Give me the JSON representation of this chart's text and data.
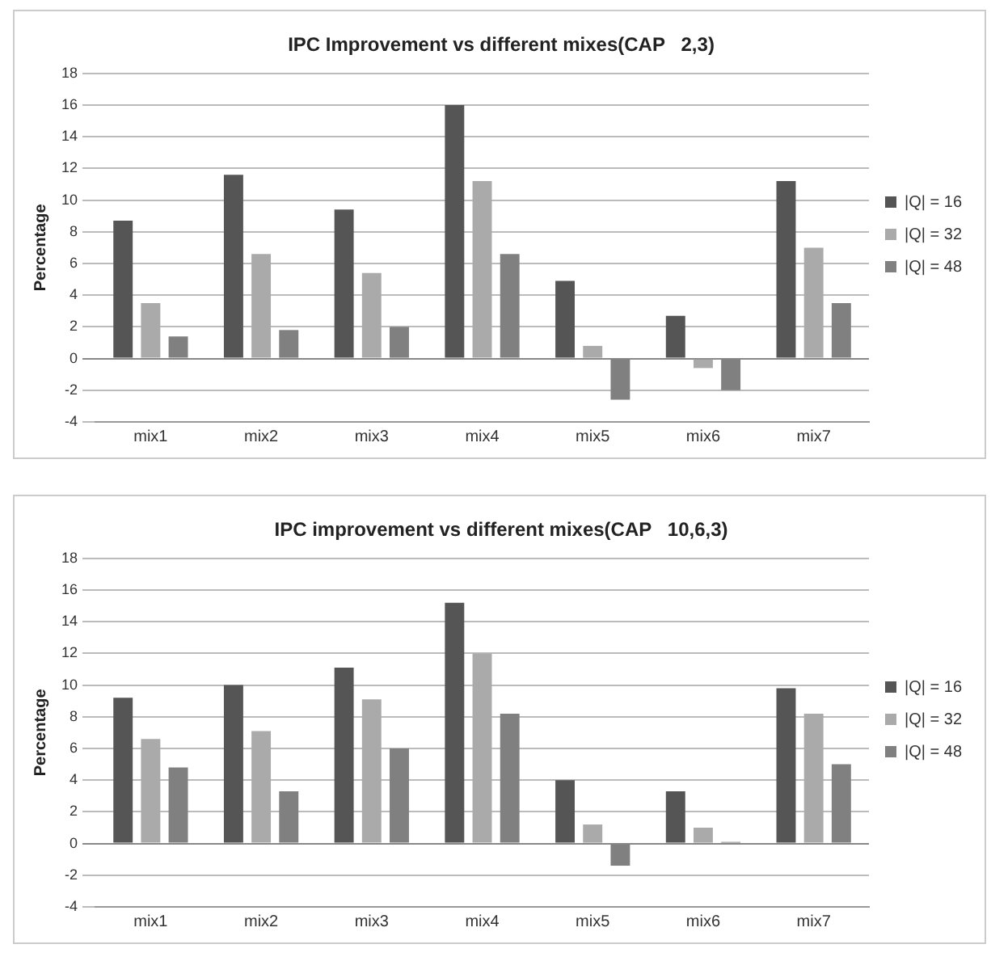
{
  "chart_data": [
    {
      "type": "bar",
      "title": "IPC Improvement vs different mixes(CAP   2,3)",
      "ylabel": "Percentage",
      "categories": [
        "mix1",
        "mix2",
        "mix3",
        "mix4",
        "mix5",
        "mix6",
        "mix7"
      ],
      "series": [
        {
          "name": "|Q| = 16",
          "color": "#555555",
          "values": [
            8.7,
            11.6,
            9.4,
            16,
            4.9,
            2.7,
            11.2
          ]
        },
        {
          "name": "|Q| = 32",
          "color": "#aaaaaa",
          "values": [
            3.5,
            6.6,
            5.4,
            11.2,
            0.8,
            -0.6,
            7.0
          ]
        },
        {
          "name": "|Q| = 48",
          "color": "#808080",
          "values": [
            1.4,
            1.8,
            2.0,
            6.6,
            -2.6,
            -2.0,
            3.5
          ]
        }
      ],
      "ylim": [
        -4,
        18
      ],
      "yticks": [
        -4,
        -2,
        0,
        2,
        4,
        6,
        8,
        10,
        12,
        14,
        16,
        18
      ],
      "grid": "y",
      "legend": "right"
    },
    {
      "type": "bar",
      "title": "IPC improvement vs different mixes(CAP   10,6,3)",
      "ylabel": "Percentage",
      "categories": [
        "mix1",
        "mix2",
        "mix3",
        "mix4",
        "mix5",
        "mix6",
        "mix7"
      ],
      "series": [
        {
          "name": "|Q| = 16",
          "color": "#555555",
          "values": [
            9.2,
            10.0,
            11.1,
            15.2,
            4.0,
            3.3,
            9.8
          ]
        },
        {
          "name": "|Q| = 32",
          "color": "#aaaaaa",
          "values": [
            6.6,
            7.1,
            9.1,
            12.0,
            1.2,
            1.0,
            8.2
          ]
        },
        {
          "name": "|Q| = 48",
          "color": "#808080",
          "values": [
            4.8,
            3.3,
            6.0,
            8.2,
            -1.4,
            0.1,
            5.0
          ]
        }
      ],
      "ylim": [
        -4,
        18
      ],
      "yticks": [
        -4,
        -2,
        0,
        2,
        4,
        6,
        8,
        10,
        12,
        14,
        16,
        18
      ],
      "grid": "y",
      "legend": "right"
    }
  ]
}
